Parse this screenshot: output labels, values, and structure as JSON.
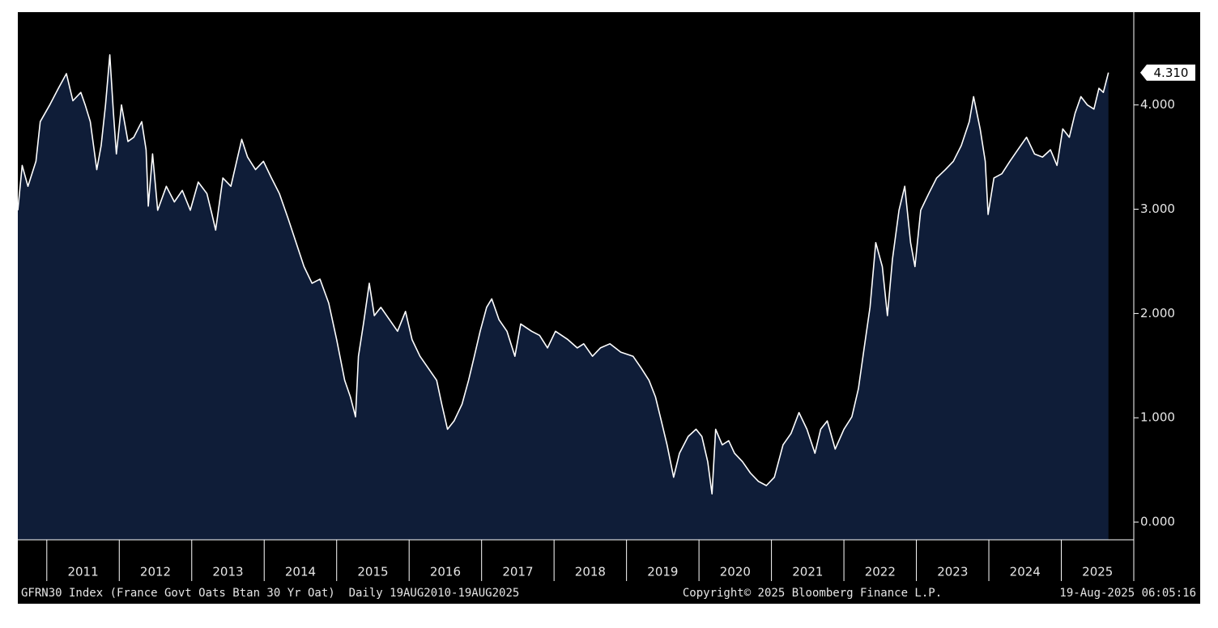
{
  "chart_data": {
    "type": "area",
    "line_color": "#ffffff",
    "fill_color": "#0f1d38",
    "background": "#000000",
    "xlim": [
      2010.6,
      2026.0
    ],
    "ylim": [
      -0.17,
      4.89
    ],
    "xticks": [
      {
        "value": 2011,
        "label": "2011"
      },
      {
        "value": 2012,
        "label": "2012"
      },
      {
        "value": 2013,
        "label": "2013"
      },
      {
        "value": 2014,
        "label": "2014"
      },
      {
        "value": 2015,
        "label": "2015"
      },
      {
        "value": 2016,
        "label": "2016"
      },
      {
        "value": 2017,
        "label": "2017"
      },
      {
        "value": 2018,
        "label": "2018"
      },
      {
        "value": 2019,
        "label": "2019"
      },
      {
        "value": 2020,
        "label": "2020"
      },
      {
        "value": 2021,
        "label": "2021"
      },
      {
        "value": 2022,
        "label": "2022"
      },
      {
        "value": 2023,
        "label": "2023"
      },
      {
        "value": 2024,
        "label": "2024"
      },
      {
        "value": 2025,
        "label": "2025"
      }
    ],
    "yticks": [
      {
        "value": 0,
        "label": "0.000"
      },
      {
        "value": 1,
        "label": "1.000"
      },
      {
        "value": 2,
        "label": "2.000"
      },
      {
        "value": 3,
        "label": "3.000"
      },
      {
        "value": 4,
        "label": "4.000"
      }
    ],
    "x": [
      2010.6,
      2010.66,
      2010.74,
      2010.85,
      2010.91,
      2011.04,
      2011.16,
      2011.27,
      2011.36,
      2011.47,
      2011.53,
      2011.6,
      2011.69,
      2011.75,
      2011.81,
      2011.87,
      2011.92,
      2011.96,
      2012.03,
      2012.12,
      2012.2,
      2012.31,
      2012.37,
      2012.4,
      2012.46,
      2012.53,
      2012.65,
      2012.76,
      2012.87,
      2012.98,
      2013.09,
      2013.21,
      2013.28,
      2013.33,
      2013.43,
      2013.54,
      2013.62,
      2013.69,
      2013.77,
      2013.88,
      2013.99,
      2014.1,
      2014.21,
      2014.33,
      2014.44,
      2014.55,
      2014.66,
      2014.77,
      2014.89,
      2015.0,
      2015.11,
      2015.19,
      2015.26,
      2015.3,
      2015.37,
      2015.45,
      2015.52,
      2015.61,
      2015.73,
      2015.84,
      2015.95,
      2016.04,
      2016.15,
      2016.26,
      2016.38,
      2016.45,
      2016.53,
      2016.62,
      2016.73,
      2016.82,
      2016.9,
      2016.98,
      2017.07,
      2017.14,
      2017.24,
      2017.35,
      2017.46,
      2017.54,
      2017.69,
      2017.8,
      2017.91,
      2018.02,
      2018.19,
      2018.32,
      2018.41,
      2018.53,
      2018.64,
      2018.77,
      2018.92,
      2019.09,
      2019.2,
      2019.31,
      2019.4,
      2019.48,
      2019.56,
      2019.65,
      2019.73,
      2019.85,
      2019.96,
      2020.04,
      2020.12,
      2020.18,
      2020.23,
      2020.32,
      2020.41,
      2020.49,
      2020.6,
      2020.71,
      2020.82,
      2020.93,
      2021.04,
      2021.16,
      2021.27,
      2021.38,
      2021.49,
      2021.6,
      2021.68,
      2021.77,
      2021.88,
      2022.0,
      2022.11,
      2022.2,
      2022.28,
      2022.36,
      2022.44,
      2022.53,
      2022.6,
      2022.67,
      2022.76,
      2022.84,
      2022.92,
      2022.98,
      2023.06,
      2023.17,
      2023.28,
      2023.4,
      2023.51,
      2023.62,
      2023.73,
      2023.79,
      2023.88,
      2023.95,
      2023.99,
      2024.07,
      2024.18,
      2024.29,
      2024.4,
      2024.52,
      2024.63,
      2024.74,
      2024.85,
      2024.94,
      2025.02,
      2025.11,
      2025.19,
      2025.27,
      2025.36,
      2025.45,
      2025.52,
      2025.58,
      2025.65
    ],
    "values": [
      2.99,
      3.42,
      3.22,
      3.46,
      3.84,
      4.0,
      4.16,
      4.3,
      4.04,
      4.12,
      4.0,
      3.84,
      3.38,
      3.61,
      4.0,
      4.48,
      3.92,
      3.53,
      4.0,
      3.65,
      3.69,
      3.84,
      3.57,
      3.03,
      3.53,
      2.99,
      3.22,
      3.07,
      3.18,
      2.99,
      3.26,
      3.15,
      2.95,
      2.8,
      3.3,
      3.22,
      3.46,
      3.67,
      3.5,
      3.38,
      3.46,
      3.3,
      3.15,
      2.91,
      2.68,
      2.45,
      2.29,
      2.33,
      2.1,
      1.75,
      1.36,
      1.2,
      1.01,
      1.59,
      1.9,
      2.29,
      1.98,
      2.06,
      1.94,
      1.83,
      2.02,
      1.75,
      1.59,
      1.48,
      1.36,
      1.13,
      0.89,
      0.97,
      1.13,
      1.36,
      1.59,
      1.83,
      2.06,
      2.14,
      1.94,
      1.83,
      1.59,
      1.9,
      1.83,
      1.79,
      1.67,
      1.83,
      1.75,
      1.67,
      1.71,
      1.59,
      1.67,
      1.71,
      1.63,
      1.59,
      1.48,
      1.36,
      1.2,
      0.97,
      0.74,
      0.43,
      0.66,
      0.82,
      0.89,
      0.82,
      0.58,
      0.27,
      0.89,
      0.74,
      0.78,
      0.66,
      0.58,
      0.47,
      0.39,
      0.35,
      0.43,
      0.74,
      0.85,
      1.05,
      0.89,
      0.66,
      0.89,
      0.97,
      0.7,
      0.89,
      1.01,
      1.28,
      1.67,
      2.06,
      2.68,
      2.45,
      1.98,
      2.52,
      2.99,
      3.22,
      2.68,
      2.45,
      2.99,
      3.15,
      3.3,
      3.38,
      3.46,
      3.61,
      3.84,
      4.08,
      3.77,
      3.46,
      2.95,
      3.3,
      3.34,
      3.46,
      3.57,
      3.69,
      3.53,
      3.5,
      3.57,
      3.42,
      3.77,
      3.69,
      3.92,
      4.08,
      4.0,
      3.96,
      4.16,
      4.12,
      4.31
    ],
    "annotations": [
      {
        "x": 2025.65,
        "y": 4.31,
        "label": "4.310"
      }
    ],
    "footer": {
      "left": "GFRN30 Index (France Govt Oats Btan 30 Yr Oat)  Daily 19AUG2010-19AUG2025",
      "center": "Copyright© 2025 Bloomberg Finance L.P.",
      "right": "19-Aug-2025 06:05:16"
    }
  }
}
